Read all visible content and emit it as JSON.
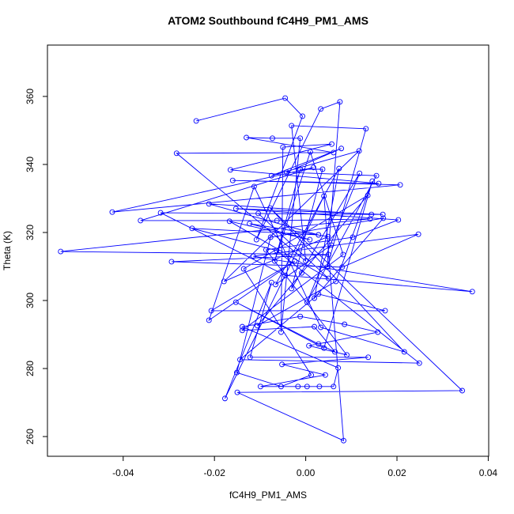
{
  "chart_data": {
    "type": "line",
    "markers": true,
    "title": "ATOM2 Southbound fC4H9_PM1_AMS",
    "x_label": "fC4H9_PM1_AMS",
    "y_label": "Theta (K)",
    "color": "#0000ff",
    "xlim": [
      -0.0566,
      0.0401
    ],
    "ylim": [
      254.2,
      375.1
    ],
    "xticks": [
      -0.04,
      -0.02,
      {
        "value": 0,
        "label": "0.00"
      },
      0.02,
      0.04
    ],
    "yticks": [
      260,
      280,
      300,
      320,
      340,
      360
    ],
    "x": [
      -0.024,
      -0.0045,
      -0.0007,
      -0.0108,
      0.0033,
      0.0075,
      0.0047,
      0.0132,
      -0.0031,
      0,
      -0.0283,
      0.0061,
      -0.013,
      -0.0073,
      -0.0012,
      -0.0054,
      -0.005,
      0.0057,
      -0.0165,
      0.016,
      -0.016,
      0.0207,
      -0.0424,
      0.0017,
      -0.0362,
      -0.0063,
      0.0141,
      -0.0537,
      0.005,
      -0.0294,
      0.008,
      0.0247,
      -0.0115,
      0.0365,
      -0.0045,
      -0.0318,
      0.0144,
      -0.0212,
      0.0028,
      -0.0249,
      -0.0064,
      0.0249,
      -0.0144,
      0.0028,
      0.0174,
      -0.0207,
      -0.0024,
      -0.0212,
      -0.0113,
      0.0033,
      0.0216,
      -0.0078,
      0.0343,
      -0.015,
      0.0083,
      0.004,
      -0.0177,
      -0.0075,
      -0.0122,
      0.0137,
      -0.0052,
      0.0043,
      -0.0099,
      -0.0017,
      0.0003,
      0.003,
      0.0061,
      0.0071,
      -0.0139,
      -0.0012,
      0.0085,
      0.0158,
      0.0007,
      0.009,
      -0.0087,
      0.0103,
      0.0203,
      -0.0153,
      0.0169,
      -0.0104,
      0.005,
      -0.0167,
      0.0009,
      -0.0123,
      0.0049,
      -0.0179,
      0.0117,
      -0.0075,
      0.0078,
      -0.0042,
      0.0155,
      0.0003,
      0.0118,
      -0.0031,
      0.0037,
      -0.0012,
      -0.0068,
      0.001,
      0.0082,
      -0.0139,
      0.0019,
      0.0064,
      0.0028,
      -0.0153,
      0.004,
      0.0146,
      0.0066,
      -0.0106,
      -0.0009,
      0.0136,
      -0.0136,
      0.0012,
      -0.0054,
      -0.0151,
      -0.0077,
      0.017,
      0.0019,
      0.0073,
      -0.0066,
      0.0056
    ],
    "values": [
      352.8,
      359.5,
      354.2,
      317.9,
      356.3,
      358.4,
      309.8,
      350.5,
      351.4,
      311.6,
      343.3,
      343.5,
      347.9,
      347.7,
      347.7,
      290.7,
      345.1,
      346.0,
      338.4,
      334.4,
      335.3,
      334.0,
      326.0,
      339.1,
      323.5,
      323.5,
      324.0,
      314.4,
      313.5,
      311.4,
      309.8,
      319.5,
      313.0,
      302.6,
      307.4,
      325.8,
      325.3,
      328.4,
      319.3,
      321.2,
      314.7,
      281.6,
      282.6,
      301.9,
      297.0,
      297.0,
      311.6,
      294.2,
      333.5,
      292.1,
      284.9,
      327.2,
      273.5,
      273.0,
      258.8,
      330.7,
      271.2,
      305.3,
      283.3,
      283.3,
      281.2,
      278.1,
      274.7,
      274.7,
      274.7,
      274.7,
      274.7,
      280.2,
      292.3,
      295.3,
      293.0,
      290.7,
      286.7,
      284.0,
      314.9,
      318.6,
      323.7,
      327.0,
      325.3,
      325.6,
      306.5,
      323.3,
      317.9,
      322.6,
      318.8,
      305.6,
      344.0,
      336.7,
      344.7,
      337.7,
      336.7,
      299.5,
      337.4,
      303.5,
      338.6,
      338.6,
      311.6,
      343.7,
      313.5,
      291.2,
      292.3,
      284.9,
      287.2,
      299.5,
      286.0,
      335.1,
      305.6,
      292.6,
      308.1,
      330.9,
      309.3,
      278.1,
      274.7,
      278.8,
      318.6,
      324.2,
      300.7,
      338.8,
      304.7,
      316.3
    ]
  }
}
